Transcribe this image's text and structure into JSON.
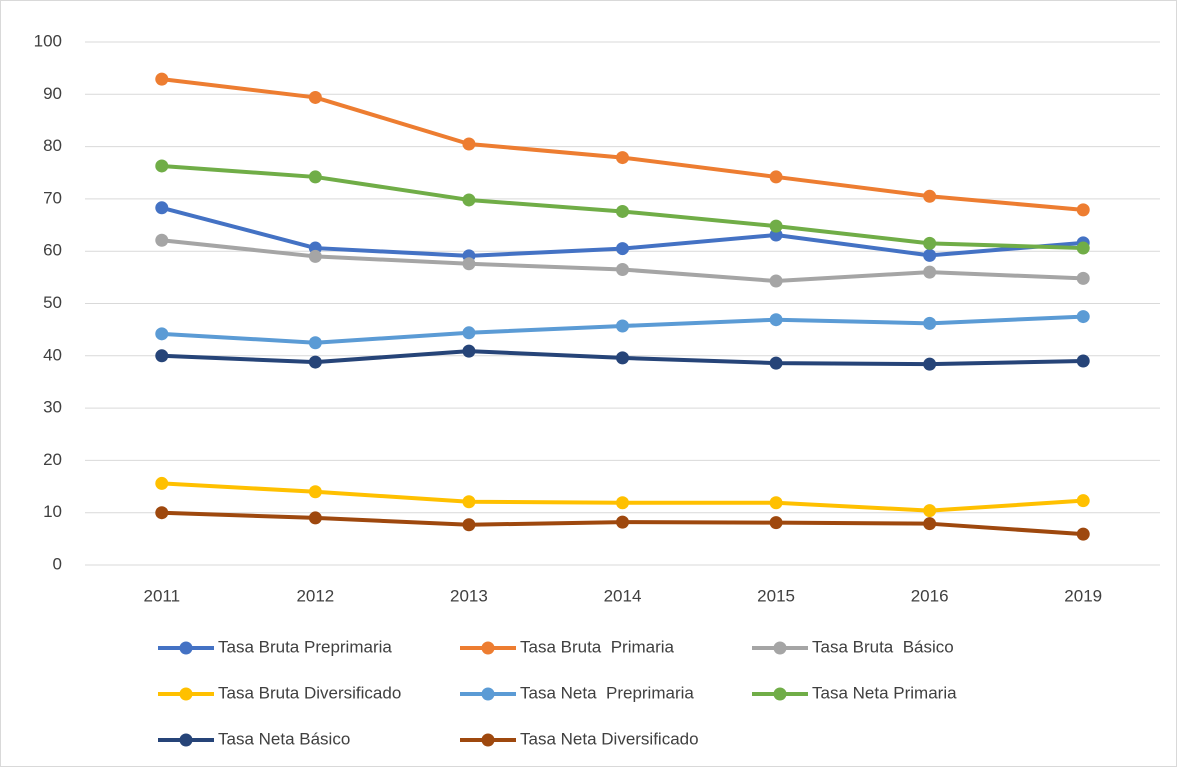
{
  "chart_data": {
    "type": "line",
    "categories": [
      "2011",
      "2012",
      "2013",
      "2014",
      "2015",
      "2016",
      "2019"
    ],
    "ylim": [
      0,
      100
    ],
    "yticks": [
      0,
      10,
      20,
      30,
      40,
      50,
      60,
      70,
      80,
      90,
      100
    ],
    "grid": true,
    "legend": "bottom",
    "series": [
      {
        "name": "Tasa Bruta Preprimaria",
        "color": "#4472c4",
        "values": [
          68.3,
          60.6,
          59.1,
          60.5,
          63.1,
          59.2,
          61.6
        ]
      },
      {
        "name": "Tasa Bruta  Primaria",
        "color": "#ed7d31",
        "values": [
          92.9,
          89.4,
          80.5,
          77.9,
          74.2,
          70.5,
          67.9
        ]
      },
      {
        "name": "Tasa Bruta  Básico",
        "color": "#a5a5a5",
        "values": [
          62.1,
          59.0,
          57.6,
          56.5,
          54.3,
          56.0,
          54.8
        ]
      },
      {
        "name": "Tasa Bruta Diversificado",
        "color": "#ffc000",
        "values": [
          15.6,
          14.0,
          12.1,
          11.9,
          11.9,
          10.4,
          12.3
        ]
      },
      {
        "name": "Tasa Neta  Preprimaria",
        "color": "#5b9bd5",
        "values": [
          44.2,
          42.5,
          44.4,
          45.7,
          46.9,
          46.2,
          47.5
        ]
      },
      {
        "name": "Tasa Neta Primaria",
        "color": "#70ad47",
        "values": [
          76.3,
          74.2,
          69.8,
          67.6,
          64.8,
          61.5,
          60.6
        ]
      },
      {
        "name": "Tasa Neta Básico",
        "color": "#264478",
        "values": [
          40.0,
          38.8,
          40.9,
          39.6,
          38.6,
          38.4,
          39.0
        ]
      },
      {
        "name": "Tasa Neta Diversificado",
        "color": "#9e480e",
        "values": [
          10.0,
          9.0,
          7.7,
          8.2,
          8.1,
          7.9,
          5.9
        ]
      }
    ]
  }
}
